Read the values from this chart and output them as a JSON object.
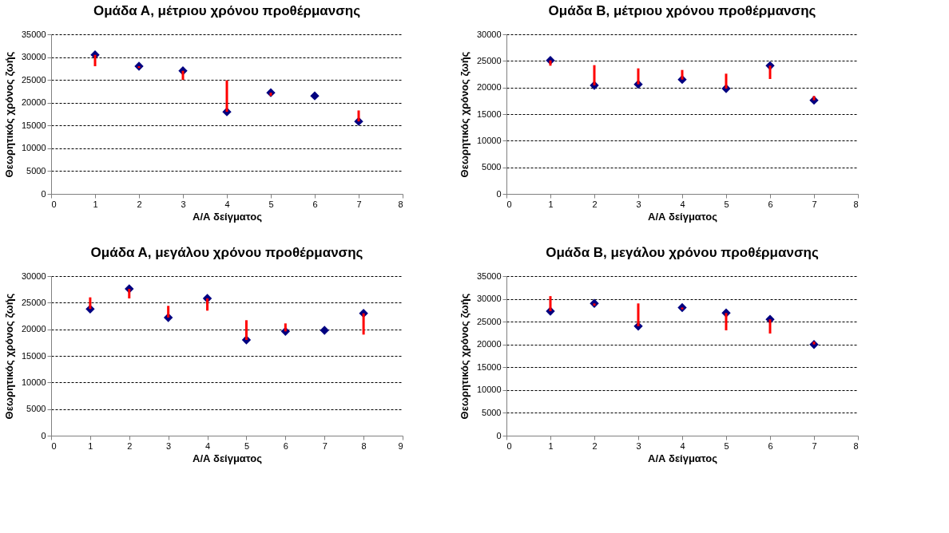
{
  "chart_data": [
    {
      "type": "scatter",
      "title": "Ομάδα Α, μέτριου χρόνου προθέρμανσης",
      "xlabel": "Α/Α δείγματος",
      "ylabel": "Θεωρητικός χρόνος ζωής",
      "x": [
        1,
        2,
        3,
        4,
        5,
        6,
        7
      ],
      "xlim": [
        0,
        8
      ],
      "xticks": [
        0,
        1,
        2,
        3,
        4,
        5,
        6,
        7,
        8
      ],
      "ylim": [
        0,
        35000
      ],
      "yticks": [
        0,
        5000,
        10000,
        15000,
        20000,
        25000,
        30000,
        35000
      ],
      "grid": "y",
      "marker": "diamond",
      "series": [
        {
          "color": "#000080",
          "values": [
            30500,
            28000,
            27000,
            18000,
            22200,
            21500,
            15900
          ],
          "errors": [
            [
              28000,
              30500
            ],
            [
              27600,
              28000
            ],
            [
              25000,
              27000
            ],
            [
              18000,
              24900
            ],
            [
              21500,
              22200
            ],
            null,
            [
              15900,
              18300
            ]
          ]
        }
      ]
    },
    {
      "type": "scatter",
      "title": "Ομάδα Β, μέτριου χρόνου προθέρμανσης",
      "xlabel": "Α/Α δείγματος",
      "ylabel": "Θεωρητικός χρόνος ζωής",
      "x": [
        1,
        2,
        3,
        4,
        5,
        6,
        7
      ],
      "xlim": [
        0,
        8
      ],
      "xticks": [
        0,
        1,
        2,
        3,
        4,
        5,
        6,
        7,
        8
      ],
      "ylim": [
        0,
        30000
      ],
      "yticks": [
        0,
        5000,
        10000,
        15000,
        20000,
        25000,
        30000
      ],
      "grid": "y",
      "marker": "diamond",
      "series": [
        {
          "color": "#000080",
          "values": [
            25100,
            20400,
            20600,
            21500,
            19800,
            24100,
            17600
          ],
          "errors": [
            [
              24100,
              25100
            ],
            [
              20400,
              24200
            ],
            [
              20600,
              23600
            ],
            [
              21500,
              23300
            ],
            [
              19800,
              22600
            ],
            [
              21600,
              24100
            ],
            [
              17600,
              18400
            ]
          ]
        }
      ]
    },
    {
      "type": "scatter",
      "title": "Ομάδα Α, μεγάλου χρόνου προθέρμανσης",
      "xlabel": "Α/Α δείγματος",
      "ylabel": "Θεωρητικός χρόνος ζωής",
      "x": [
        1,
        2,
        3,
        4,
        5,
        6,
        7,
        8
      ],
      "xlim": [
        0,
        9
      ],
      "xticks": [
        0,
        1,
        2,
        3,
        4,
        5,
        6,
        7,
        8,
        9
      ],
      "ylim": [
        0,
        30000
      ],
      "yticks": [
        0,
        5000,
        10000,
        15000,
        20000,
        25000,
        30000
      ],
      "grid": "y",
      "marker": "diamond",
      "series": [
        {
          "color": "#000080",
          "values": [
            23800,
            27600,
            22200,
            25800,
            18000,
            19600,
            19800,
            23000
          ],
          "errors": [
            [
              23800,
              26000
            ],
            [
              25800,
              27600
            ],
            [
              22200,
              24400
            ],
            [
              23500,
              25800
            ],
            [
              18000,
              21700
            ],
            [
              19600,
              21100
            ],
            null,
            [
              19000,
              23000
            ]
          ]
        }
      ]
    },
    {
      "type": "scatter",
      "title": "Ομάδα Β, μεγάλου χρόνου προθέρμανσης",
      "xlabel": "Α/Α δείγματος",
      "ylabel": "Θεωρητικός χρόνος ζωής",
      "x": [
        1,
        2,
        3,
        4,
        5,
        6,
        7
      ],
      "xlim": [
        0,
        8
      ],
      "xticks": [
        0,
        1,
        2,
        3,
        4,
        5,
        6,
        7,
        8
      ],
      "ylim": [
        0,
        35000
      ],
      "yticks": [
        0,
        5000,
        10000,
        15000,
        20000,
        25000,
        30000,
        35000
      ],
      "grid": "y",
      "marker": "diamond",
      "series": [
        {
          "color": "#000080",
          "values": [
            27300,
            29000,
            24000,
            28100,
            26900,
            25500,
            20000
          ],
          "errors": [
            [
              27300,
              30600
            ],
            [
              28500,
              29000
            ],
            [
              24000,
              29000
            ],
            [
              27700,
              28100
            ],
            [
              23100,
              26900
            ],
            [
              22400,
              25500
            ],
            [
              20000,
              20600
            ]
          ]
        }
      ]
    }
  ]
}
